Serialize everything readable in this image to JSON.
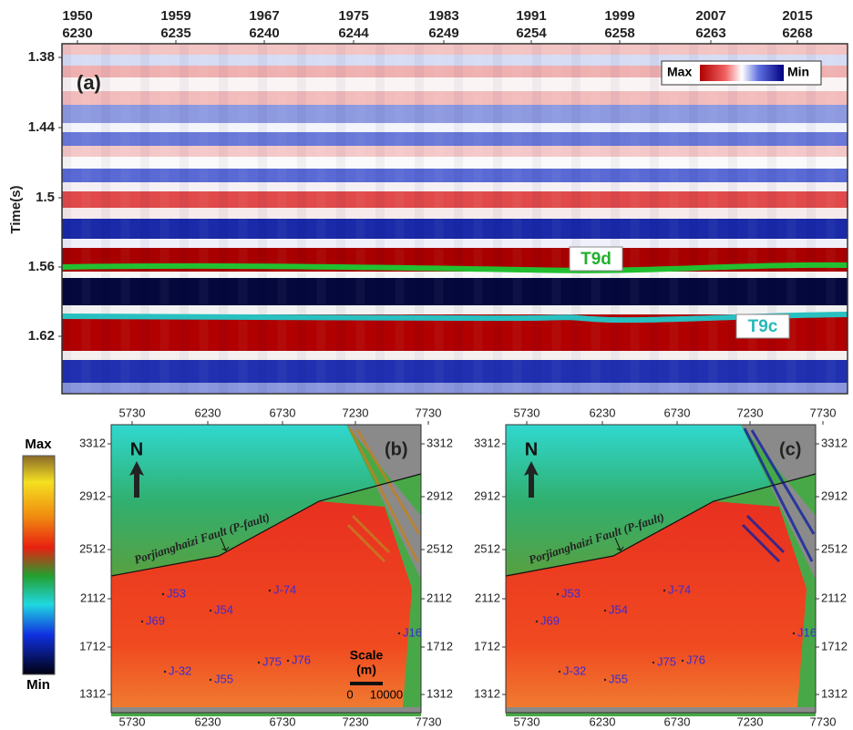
{
  "panel_a": {
    "label": "(a)",
    "y_axis_title": "Time(s)",
    "top_ticks": [
      [
        "1950",
        "6230"
      ],
      [
        "1959",
        "6235"
      ],
      [
        "1967",
        "6240"
      ],
      [
        "1975",
        "6244"
      ],
      [
        "1983",
        "6249"
      ],
      [
        "1991",
        "6254"
      ],
      [
        "1999",
        "6258"
      ],
      [
        "2007",
        "6263"
      ],
      [
        "2015",
        "6268"
      ]
    ],
    "y_ticks": [
      "1.38",
      "1.44",
      "1.5",
      "1.56",
      "1.62"
    ],
    "legend": {
      "max": "Max",
      "min": "Min"
    },
    "horizons": [
      "T9d",
      "T9c"
    ]
  },
  "colorbar": {
    "max": "Max",
    "min": "Min"
  },
  "maps": [
    {
      "label": "(b)",
      "x_ticks": [
        "5730",
        "6230",
        "6730",
        "7230",
        "7730"
      ],
      "y_ticks": [
        "3312",
        "2912",
        "2512",
        "2112",
        "1712",
        "1312"
      ],
      "north": "N",
      "fault": "Porjianghaizi Fault (P-fault)",
      "wells": [
        "J53",
        "J54",
        "J-74",
        "J69",
        "J-32",
        "J55",
        "J75",
        "J76",
        "J16"
      ],
      "scale": {
        "title": "Scale",
        "unit": "(m)",
        "start": "0",
        "end": "10000"
      }
    },
    {
      "label": "(c)",
      "x_ticks": [
        "5730",
        "6230",
        "6730",
        "7230",
        "7730"
      ],
      "y_ticks": [
        "3312",
        "2912",
        "2512",
        "2112",
        "1712",
        "1312"
      ],
      "north": "N",
      "fault": "Porjianghaizi Fault (P-fault)",
      "wells": [
        "J53",
        "J54",
        "J-74",
        "J69",
        "J-32",
        "J55",
        "J75",
        "J76",
        "J16"
      ]
    }
  ]
}
